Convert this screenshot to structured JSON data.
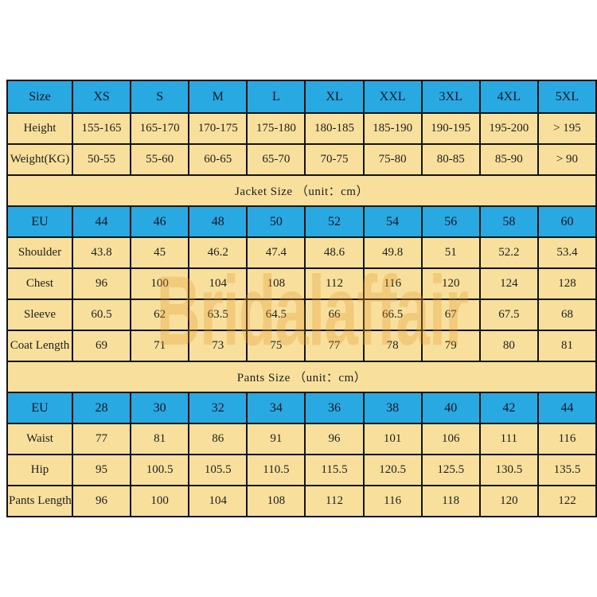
{
  "watermark": "Bridalaffair",
  "colors": {
    "header_blue": "#29A9E1",
    "cell_yellow": "#F8E09C",
    "grid_border": "#141414",
    "text": "#1E1E1E",
    "watermark_orange": "#E79833",
    "page_background": "#FFFFFF"
  },
  "chart_data": [
    {
      "type": "table",
      "title": "",
      "columns": [
        "Size",
        "XS",
        "S",
        "M",
        "L",
        "XL",
        "XXL",
        "3XL",
        "4XL",
        "5XL"
      ],
      "rows": [
        [
          "Height",
          "155-165",
          "165-170",
          "170-175",
          "175-180",
          "180-185",
          "185-190",
          "190-195",
          "195-200",
          "> 195"
        ],
        [
          "Weight(KG)",
          "50-55",
          "55-60",
          "60-65",
          "65-70",
          "70-75",
          "75-80",
          "80-85",
          "85-90",
          "> 90"
        ]
      ]
    },
    {
      "type": "table",
      "title": "Jacket Size （unit：cm）",
      "columns": [
        "EU",
        "44",
        "46",
        "48",
        "50",
        "52",
        "54",
        "56",
        "58",
        "60"
      ],
      "rows": [
        [
          "Shoulder",
          "43.8",
          "45",
          "46.2",
          "47.4",
          "48.6",
          "49.8",
          "51",
          "52.2",
          "53.4"
        ],
        [
          "Chest",
          "96",
          "100",
          "104",
          "108",
          "112",
          "116",
          "120",
          "124",
          "128"
        ],
        [
          "Sleeve",
          "60.5",
          "62",
          "63.5",
          "64.5",
          "66",
          "66.5",
          "67",
          "67.5",
          "68"
        ],
        [
          "Coat Length",
          "69",
          "71",
          "73",
          "75",
          "77",
          "78",
          "79",
          "80",
          "81"
        ]
      ]
    },
    {
      "type": "table",
      "title": "Pants Size （unit：cm）",
      "columns": [
        "EU",
        "28",
        "30",
        "32",
        "34",
        "36",
        "38",
        "40",
        "42",
        "44"
      ],
      "rows": [
        [
          "Waist",
          "77",
          "81",
          "86",
          "91",
          "96",
          "101",
          "106",
          "111",
          "116"
        ],
        [
          "Hip",
          "95",
          "100.5",
          "105.5",
          "110.5",
          "115.5",
          "120.5",
          "125.5",
          "130.5",
          "135.5"
        ],
        [
          "Pants Length",
          "96",
          "100",
          "104",
          "108",
          "112",
          "116",
          "118",
          "120",
          "122"
        ]
      ]
    }
  ]
}
